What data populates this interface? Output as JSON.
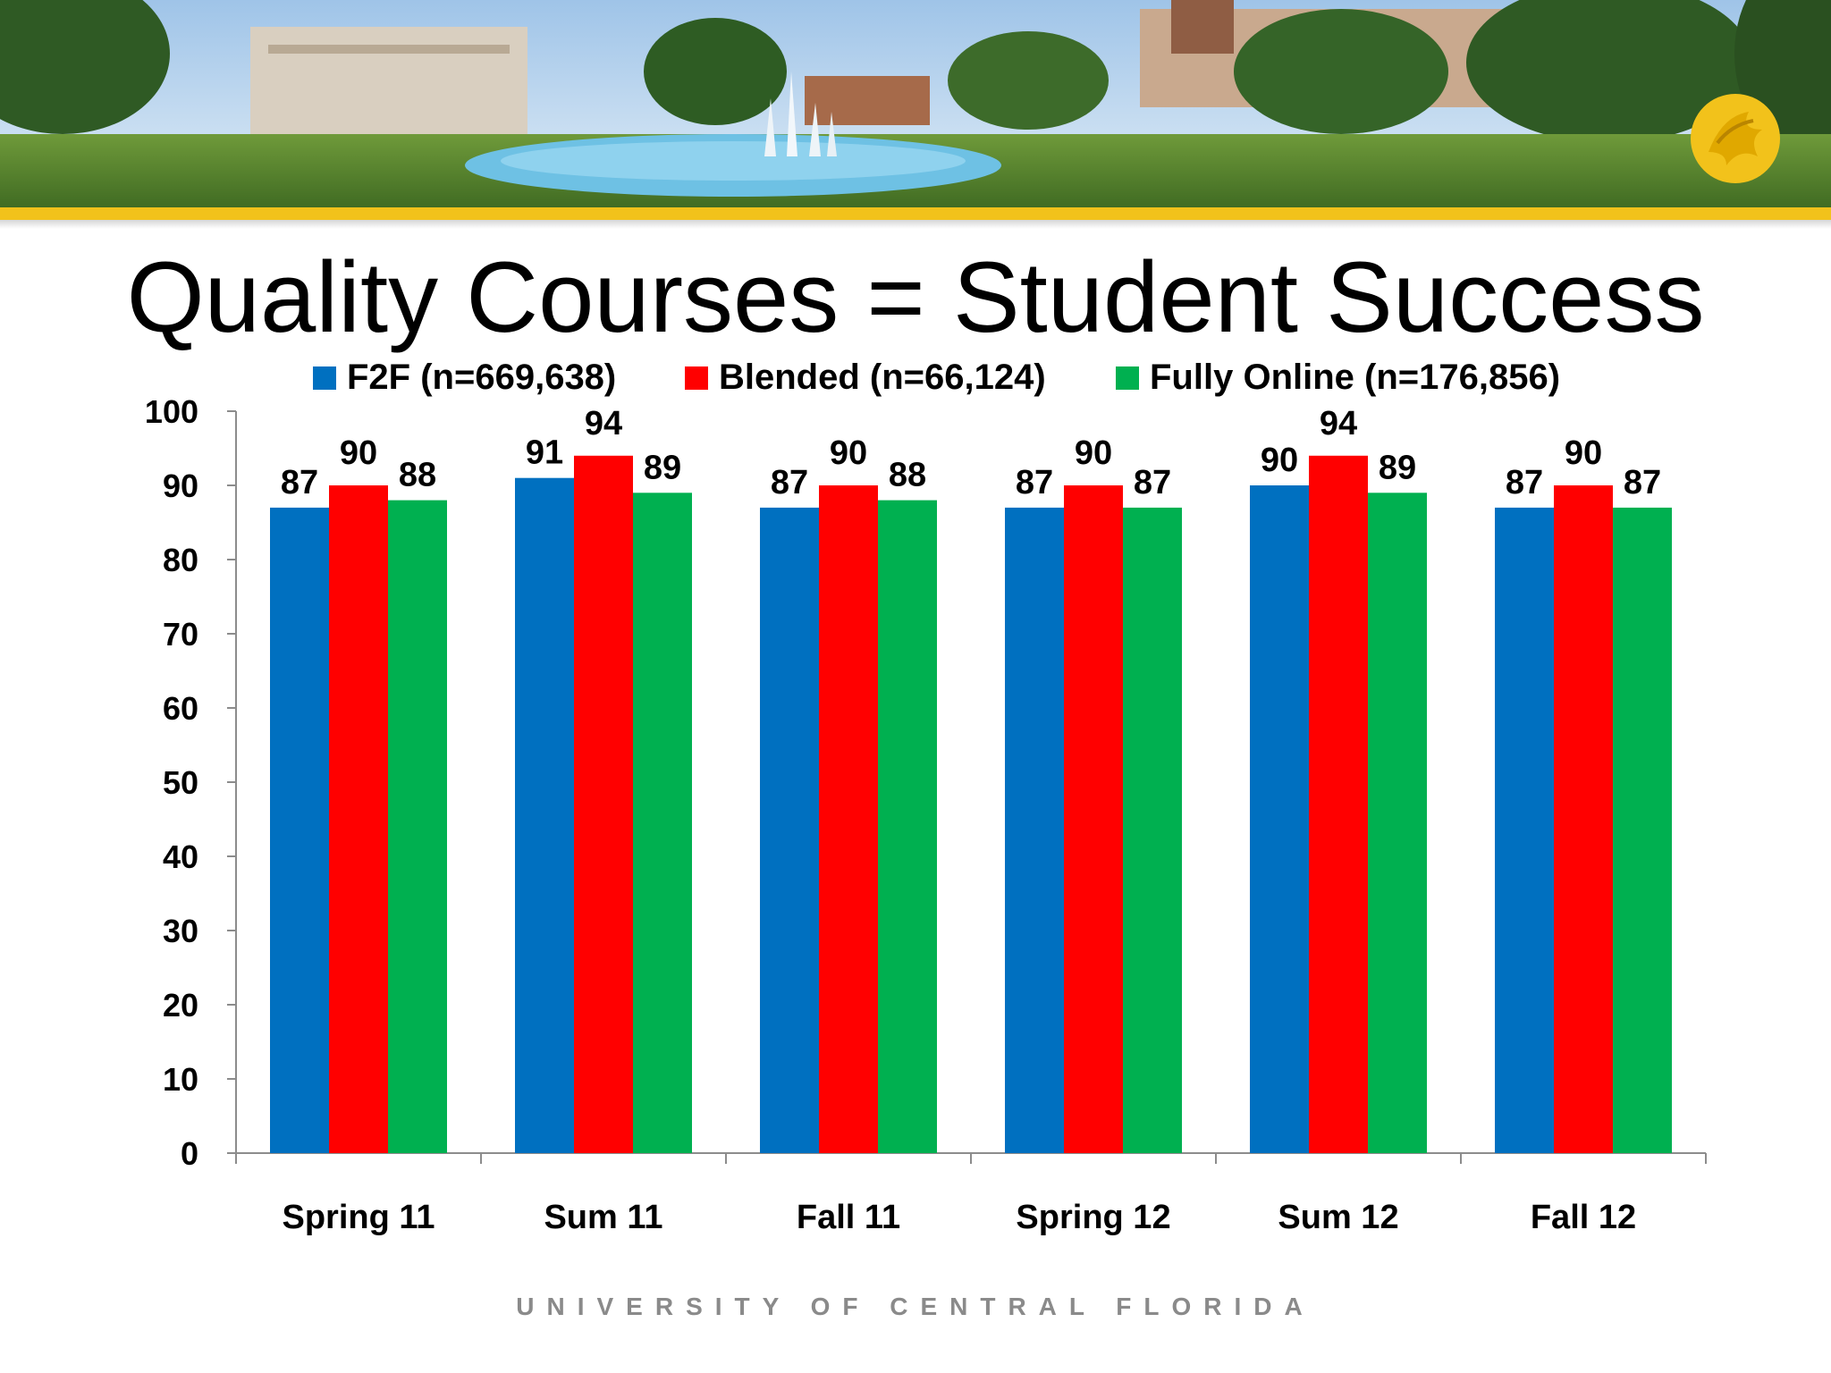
{
  "slide": {
    "title": "Quality Courses = Student Success",
    "footer": "UNIVERSITY OF CENTRAL FLORIDA"
  },
  "colors": {
    "f2f": "#0070c0",
    "blended": "#ff0000",
    "online": "#00b050",
    "gold": "#f2c21b"
  },
  "chart_data": {
    "type": "bar",
    "title": "",
    "xlabel": "",
    "ylabel": "",
    "ylim": [
      0,
      100
    ],
    "yticks": [
      0,
      10,
      20,
      30,
      40,
      50,
      60,
      70,
      80,
      90,
      100
    ],
    "legend_position": "top",
    "categories": [
      "Spring 11",
      "Sum 11",
      "Fall 11",
      "Spring 12",
      "Sum 12",
      "Fall 12"
    ],
    "series": [
      {
        "name": "F2F (n=669,638)",
        "color": "#0070c0",
        "values": [
          87,
          91,
          87,
          87,
          90,
          87
        ]
      },
      {
        "name": "Blended (n=66,124)",
        "color": "#ff0000",
        "values": [
          90,
          94,
          90,
          90,
          94,
          90
        ]
      },
      {
        "name": "Fully Online (n=176,856)",
        "color": "#00b050",
        "values": [
          88,
          89,
          88,
          87,
          89,
          87
        ]
      }
    ]
  }
}
